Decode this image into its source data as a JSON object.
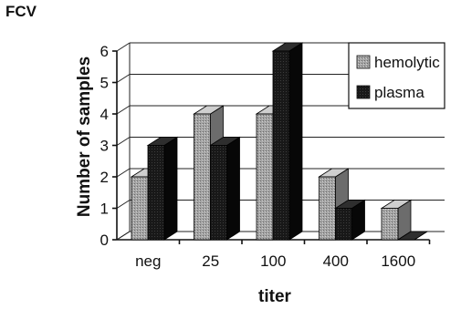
{
  "figure": {
    "panel_label": "FCV"
  },
  "chart_data": {
    "type": "bar",
    "title": "",
    "categories": [
      "neg",
      "25",
      "100",
      "400",
      "1600"
    ],
    "series": [
      {
        "name": "hemolytic",
        "values": [
          2,
          4,
          4,
          2,
          1
        ],
        "color": "#9a9a9a"
      },
      {
        "name": "plasma",
        "values": [
          3,
          3,
          6,
          1,
          0
        ],
        "color": "#161616"
      }
    ],
    "xlabel": "titer",
    "ylabel": "Number of samples",
    "ylim": [
      0,
      6
    ],
    "yticks": [
      "0",
      "1",
      "2",
      "3",
      "4",
      "5",
      "6"
    ],
    "grid": true,
    "legend": "top-right",
    "style": "3d-column"
  }
}
